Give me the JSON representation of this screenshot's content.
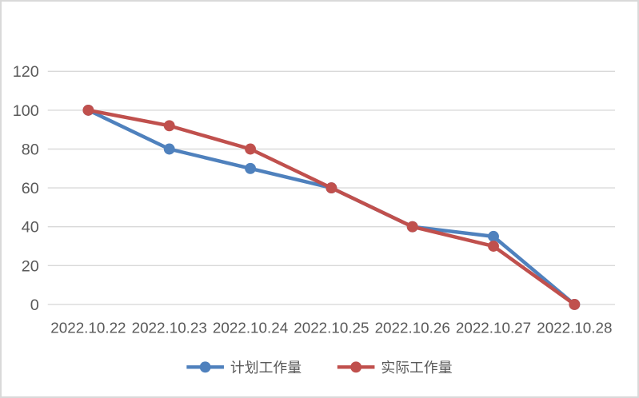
{
  "chart_data": {
    "type": "line",
    "title": "",
    "categories": [
      "2022.10.22",
      "2022.10.23",
      "2022.10.24",
      "2022.10.25",
      "2022.10.26",
      "2022.10.27",
      "2022.10.28"
    ],
    "series": [
      {
        "name": "计划工作量",
        "color": "#4F81BD",
        "values": [
          100,
          80,
          70,
          60,
          40,
          35,
          0
        ]
      },
      {
        "name": "实际工作量",
        "color": "#C0504D",
        "values": [
          100,
          92,
          80,
          60,
          40,
          30,
          0
        ]
      }
    ],
    "xlabel": "",
    "ylabel": "",
    "ylim": [
      0,
      120
    ],
    "y_ticks": [
      0,
      20,
      40,
      60,
      80,
      100,
      120
    ],
    "grid": true,
    "legend_position": "bottom",
    "gridline_color": "#D9D9D9",
    "axis_label_color": "#595959",
    "background": "#FFFFFF",
    "border_color": "#D9D9D9"
  }
}
